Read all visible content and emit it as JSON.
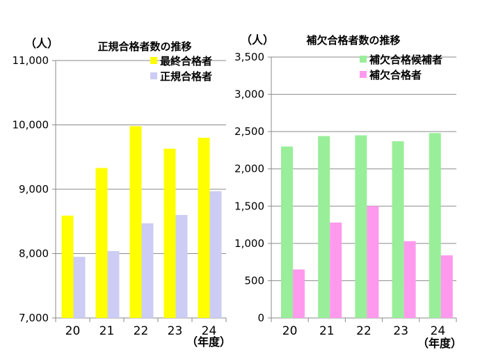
{
  "chart_data": [
    {
      "type": "bar",
      "title": "正規合格者数の推移",
      "ylabel": "（人）",
      "xlabel": "（年度）",
      "categories": [
        "20",
        "21",
        "22",
        "23",
        "24"
      ],
      "ylim": [
        7000,
        11000
      ],
      "yticks": [
        "7,000",
        "8,000",
        "9,000",
        "10,000",
        "11,000"
      ],
      "ytick_values": [
        7000,
        8000,
        9000,
        10000,
        11000
      ],
      "legend_position": "top-right",
      "series": [
        {
          "name": "最終合格者",
          "values": [
            8590,
            9330,
            9980,
            9630,
            9800
          ],
          "color": "#ffff00"
        },
        {
          "name": "正規合格者",
          "values": [
            7950,
            8040,
            8470,
            8600,
            8970
          ],
          "color": "#ccccf5"
        }
      ]
    },
    {
      "type": "bar",
      "title": "補欠合格者数の推移",
      "ylabel": "（人）",
      "xlabel": "（年度）",
      "categories": [
        "20",
        "21",
        "22",
        "23",
        "24"
      ],
      "ylim": [
        0,
        3500
      ],
      "yticks": [
        "0",
        "500",
        "1,000",
        "1,500",
        "2,000",
        "2,500",
        "3,000",
        "3,500"
      ],
      "ytick_values": [
        0,
        500,
        1000,
        1500,
        2000,
        2500,
        3000,
        3500
      ],
      "legend_position": "top-right",
      "series": [
        {
          "name": "補欠合格候補者",
          "values": [
            2300,
            2440,
            2450,
            2370,
            2480
          ],
          "color": "#99ee99"
        },
        {
          "name": "補欠合格者",
          "values": [
            650,
            1280,
            1500,
            1030,
            840
          ],
          "color": "#ff99ee"
        }
      ]
    }
  ]
}
